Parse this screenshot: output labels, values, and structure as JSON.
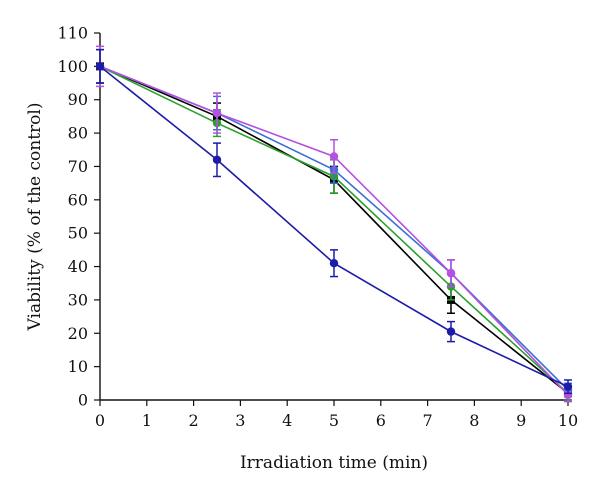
{
  "chart_data": {
    "type": "line",
    "title": "",
    "xlabel": "Irradiation time (min)",
    "ylabel": "Viability (% of the control)",
    "xlim": [
      0,
      10
    ],
    "ylim": [
      0,
      110
    ],
    "x_ticks": [
      0,
      1,
      2,
      3,
      4,
      5,
      6,
      7,
      8,
      9,
      10
    ],
    "y_ticks": [
      0,
      10,
      20,
      30,
      40,
      50,
      60,
      70,
      80,
      90,
      100,
      110
    ],
    "grid": false,
    "legend": "none",
    "series": [
      {
        "color": "#000000",
        "marker": "square",
        "x": [
          0,
          2.5,
          5,
          7.5,
          10
        ],
        "y": [
          100,
          85,
          66,
          30,
          2
        ],
        "err": [
          5,
          4,
          4,
          4,
          2
        ]
      },
      {
        "color": "#2ca02c",
        "marker": "circle",
        "x": [
          0,
          2.5,
          5,
          7.5,
          10
        ],
        "y": [
          100,
          83,
          67,
          34,
          2
        ],
        "err": [
          5,
          4,
          5,
          4,
          2
        ]
      },
      {
        "color": "#3b6fd4",
        "marker": "circle",
        "x": [
          0,
          2.5,
          5,
          7.5,
          10
        ],
        "y": [
          100,
          86,
          69,
          38,
          3
        ],
        "err": [
          5,
          5,
          4,
          4,
          2
        ]
      },
      {
        "color": "#b451e0",
        "marker": "circle",
        "x": [
          0,
          2.5,
          5,
          7.5,
          10
        ],
        "y": [
          100,
          86,
          73,
          38,
          1.5
        ],
        "err": [
          6,
          6,
          5,
          4,
          2
        ]
      },
      {
        "color": "#1c1ca8",
        "marker": "circle",
        "x": [
          0,
          2.5,
          5,
          7.5,
          10
        ],
        "y": [
          100,
          72,
          41,
          20.5,
          4
        ],
        "err": [
          5,
          5,
          4,
          3,
          2
        ]
      }
    ]
  }
}
